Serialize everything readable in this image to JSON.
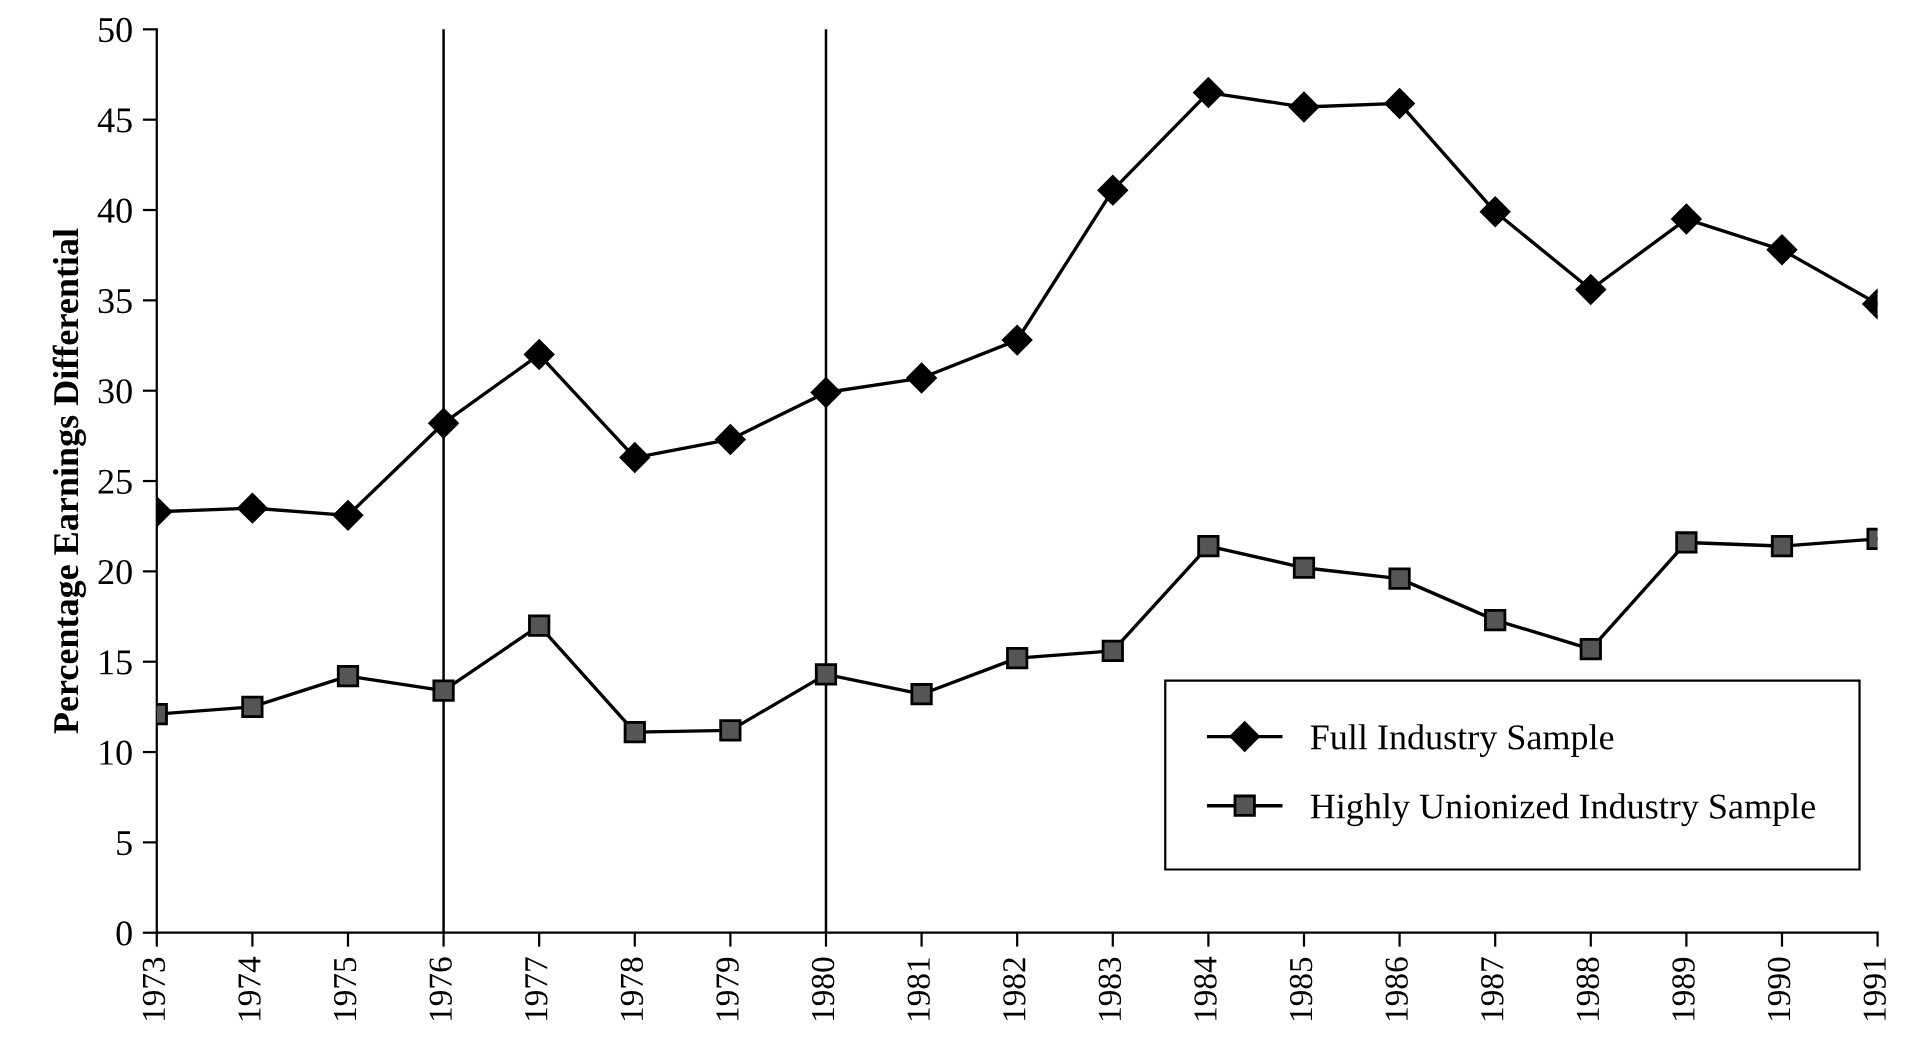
{
  "chart_data": {
    "type": "line",
    "ylabel": "Percentage Earnings Differential",
    "categories": [
      "1973",
      "1974",
      "1975",
      "1976",
      "1977",
      "1978",
      "1979",
      "1980",
      "1981",
      "1982",
      "1983",
      "1984",
      "1985",
      "1986",
      "1987",
      "1988",
      "1989",
      "1990",
      "1991"
    ],
    "series": [
      {
        "name": "Full Industry Sample",
        "color": "#000000",
        "marker": "diamond",
        "values": [
          23.3,
          23.5,
          23.1,
          28.2,
          32.0,
          26.3,
          27.3,
          29.9,
          30.7,
          32.8,
          41.1,
          46.5,
          45.7,
          45.9,
          39.9,
          35.6,
          39.5,
          37.8,
          34.8
        ]
      },
      {
        "name": "Highly Unionized Industry Sample",
        "color": "#555555",
        "marker": "square",
        "values": [
          12.1,
          12.5,
          14.2,
          13.4,
          17.0,
          11.1,
          11.2,
          14.3,
          13.2,
          15.2,
          15.6,
          21.4,
          20.2,
          19.6,
          17.3,
          15.7,
          21.6,
          21.4,
          21.8
        ]
      }
    ],
    "ylim": [
      0,
      50
    ],
    "yticks": [
      0,
      5,
      10,
      15,
      20,
      25,
      30,
      35,
      40,
      45,
      50
    ],
    "ref_lines": [
      {
        "axis": "x",
        "value": "1976",
        "color": "#000000"
      },
      {
        "axis": "x",
        "value": "1980",
        "color": "#000000"
      }
    ],
    "grid": false,
    "legend": "bottom right",
    "line_style": "solid"
  }
}
